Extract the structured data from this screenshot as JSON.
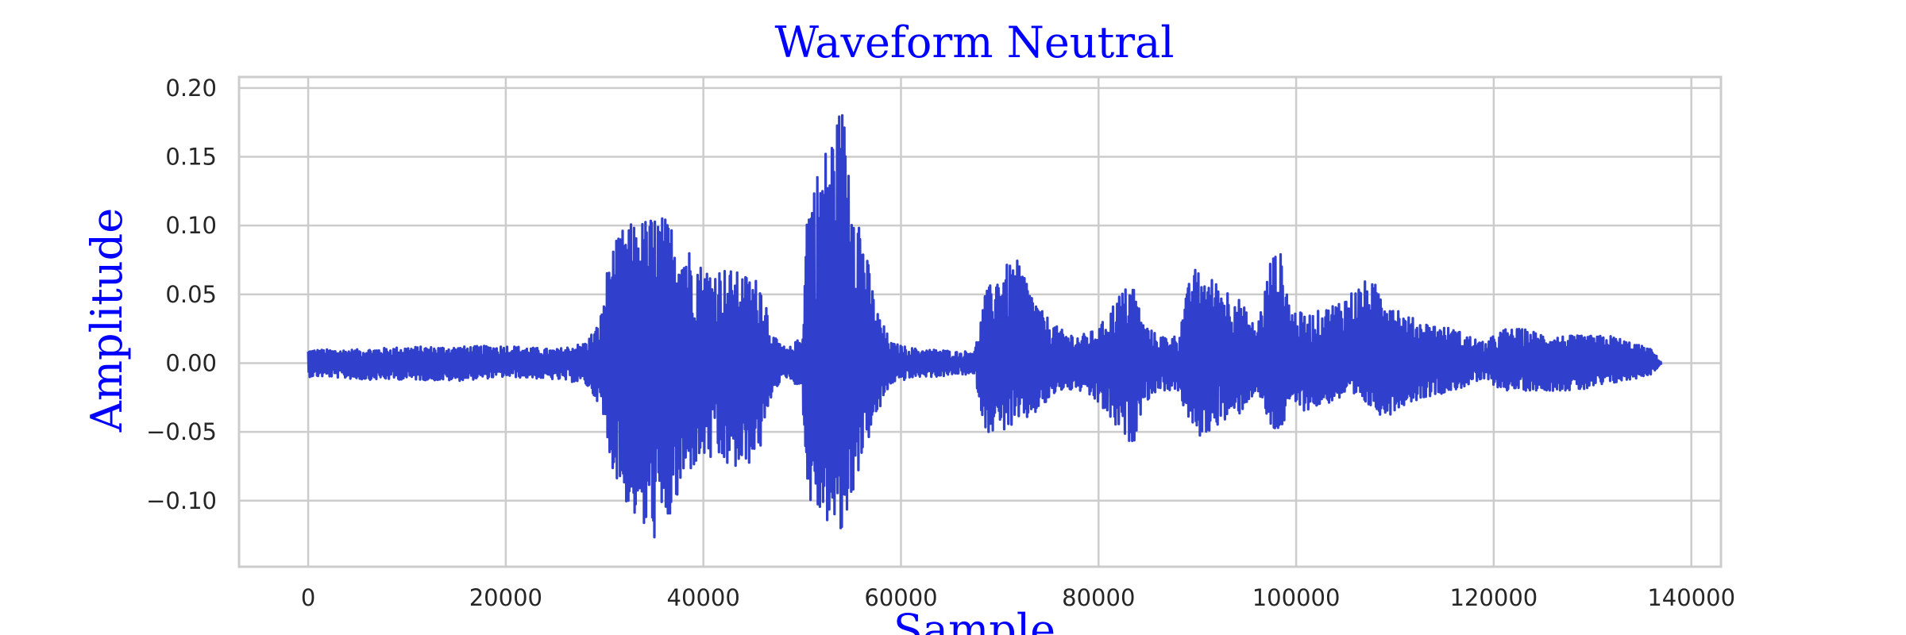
{
  "chart_data": {
    "type": "line",
    "title": "Waveform Neutral",
    "xlabel": "Sample",
    "ylabel": "Amplitude",
    "xlim": [
      -7000,
      143000
    ],
    "ylim": [
      -0.148,
      0.208
    ],
    "grid": true,
    "x_ticks": [
      0,
      20000,
      40000,
      60000,
      80000,
      100000,
      120000,
      140000
    ],
    "x_tick_labels": [
      "0",
      "20000",
      "40000",
      "60000",
      "80000",
      "100000",
      "120000",
      "140000"
    ],
    "y_ticks": [
      -0.1,
      -0.05,
      0.0,
      0.05,
      0.1,
      0.15,
      0.2
    ],
    "y_tick_labels": [
      "−0.10",
      "−0.05",
      "0.00",
      "0.05",
      "0.10",
      "0.15",
      "0.20"
    ],
    "series": [
      {
        "color": "#3040cc",
        "sample_count": 137000,
        "envelope_x": [
          0,
          2000,
          5000,
          10000,
          15000,
          20000,
          25000,
          28000,
          29500,
          30500,
          32000,
          34000,
          35500,
          37000,
          38500,
          40000,
          42000,
          44000,
          46000,
          47000,
          48500,
          50000,
          50500,
          51500,
          53000,
          54000,
          55000,
          56000,
          57500,
          59000,
          60500,
          62000,
          64000,
          66000,
          67500,
          68500,
          70000,
          72000,
          74000,
          76000,
          78000,
          80000,
          82000,
          83500,
          84500,
          86000,
          88000,
          89500,
          90500,
          92000,
          94000,
          96000,
          97500,
          98500,
          99500,
          101000,
          103000,
          105000,
          107000,
          109000,
          111000,
          113000,
          116000,
          119000,
          121000,
          123000,
          126000,
          129000,
          132000,
          134000,
          136000,
          137000
        ],
        "envelope_upper": [
          0.01,
          0.01,
          0.01,
          0.012,
          0.012,
          0.013,
          0.01,
          0.015,
          0.03,
          0.08,
          0.1,
          0.105,
          0.11,
          0.1,
          0.085,
          0.07,
          0.07,
          0.065,
          0.06,
          0.02,
          0.01,
          0.02,
          0.12,
          0.14,
          0.17,
          0.19,
          0.15,
          0.1,
          0.04,
          0.015,
          0.012,
          0.01,
          0.01,
          0.008,
          0.01,
          0.05,
          0.07,
          0.075,
          0.04,
          0.025,
          0.02,
          0.025,
          0.05,
          0.06,
          0.03,
          0.02,
          0.02,
          0.07,
          0.065,
          0.06,
          0.05,
          0.025,
          0.08,
          0.08,
          0.04,
          0.035,
          0.04,
          0.05,
          0.06,
          0.055,
          0.035,
          0.03,
          0.025,
          0.015,
          0.025,
          0.025,
          0.02,
          0.02,
          0.02,
          0.015,
          0.01,
          0.0
        ],
        "envelope_lower": [
          -0.01,
          -0.01,
          -0.012,
          -0.012,
          -0.013,
          -0.01,
          -0.012,
          -0.015,
          -0.03,
          -0.07,
          -0.1,
          -0.125,
          -0.13,
          -0.11,
          -0.08,
          -0.07,
          -0.075,
          -0.08,
          -0.06,
          -0.02,
          -0.01,
          -0.02,
          -0.1,
          -0.11,
          -0.12,
          -0.13,
          -0.1,
          -0.07,
          -0.04,
          -0.015,
          -0.012,
          -0.01,
          -0.01,
          -0.008,
          -0.01,
          -0.05,
          -0.05,
          -0.045,
          -0.035,
          -0.02,
          -0.02,
          -0.03,
          -0.05,
          -0.06,
          -0.03,
          -0.02,
          -0.02,
          -0.05,
          -0.055,
          -0.045,
          -0.04,
          -0.02,
          -0.05,
          -0.05,
          -0.03,
          -0.035,
          -0.03,
          -0.025,
          -0.03,
          -0.04,
          -0.03,
          -0.025,
          -0.02,
          -0.012,
          -0.02,
          -0.02,
          -0.02,
          -0.02,
          -0.015,
          -0.012,
          -0.008,
          0.0
        ]
      }
    ]
  }
}
